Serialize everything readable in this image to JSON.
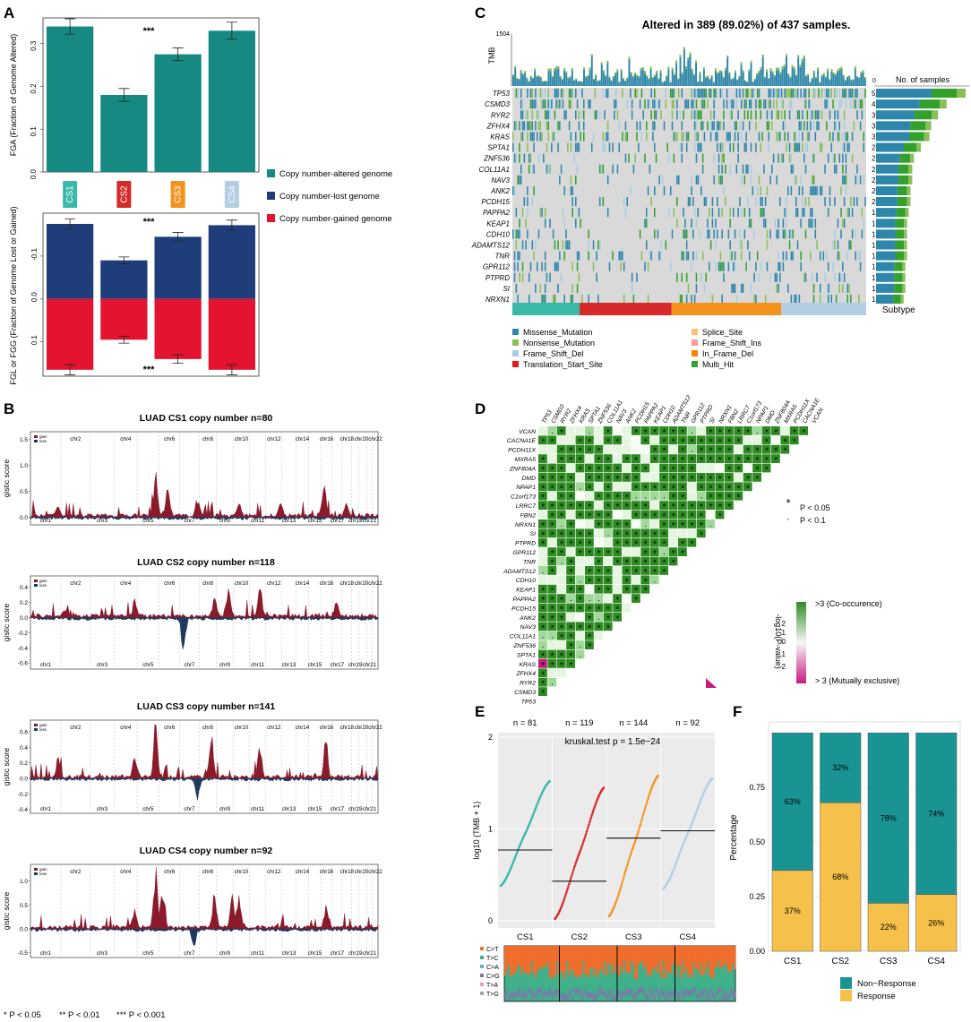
{
  "colors": {
    "teal": "#168a82",
    "navy": "#1f3d7a",
    "red": "#e4132f",
    "cs1": "#3bb9a8",
    "cs2": "#d42a2a",
    "cs3": "#f3931e",
    "cs4": "#b3cde3",
    "gain": "#8b1a2b",
    "loss": "#1f3a5f",
    "panel_bg": "#ebebeb",
    "mut_missense": "#2e86ab",
    "mut_nonsense": "#88c057",
    "mut_fsdel": "#a6cee3",
    "mut_tss": "#e31a1c",
    "mut_splice": "#fdbf6f",
    "mut_fsins": "#fb9a99",
    "mut_inframe": "#ff7f00",
    "mut_multi": "#33a02c",
    "coocc": "#2e8b22",
    "mutex": "#c51b7d",
    "resp": "#f6c14b",
    "nonresp": "#1a9493"
  },
  "panel_labels": {
    "a": "A",
    "b": "B",
    "c": "C",
    "d": "D",
    "e": "E",
    "f": "F"
  },
  "footnote": {
    "p05": "* P < 0.05",
    "p01": "** P < 0.01",
    "p001": "*** P < 0.001"
  },
  "chart_data": [
    {
      "id": "A-top",
      "type": "bar",
      "categories": [
        "CS1",
        "CS2",
        "CS3",
        "CS4"
      ],
      "values": [
        0.34,
        0.18,
        0.275,
        0.33
      ],
      "errors": [
        0.018,
        0.015,
        0.015,
        0.02
      ],
      "ylabel": "FGA (Fraction of Genome Altered)",
      "ylim": [
        0,
        0.36
      ],
      "yticks": [
        "0.0",
        "0.1",
        "0.2",
        "0.3"
      ],
      "yticks_v": [
        0,
        0.1,
        0.2,
        0.3
      ],
      "sig": "***",
      "legend": [
        "Copy number-altered genome",
        "Copy number-lost genome",
        "Copy number-gained genome"
      ]
    },
    {
      "id": "A-bottom",
      "type": "bar",
      "categories": [
        "CS1",
        "CS2",
        "CS3",
        "CS4"
      ],
      "series": [
        {
          "name": "lost",
          "values": [
            0.175,
            0.09,
            0.145,
            0.172
          ],
          "errors": [
            0.012,
            0.008,
            0.01,
            0.012
          ]
        },
        {
          "name": "gained",
          "values": [
            0.165,
            0.095,
            0.14,
            0.165
          ],
          "errors": [
            0.012,
            0.008,
            0.01,
            0.012
          ]
        }
      ],
      "ylabel": "FGL or FGG (Fraction of Genome Lost or Gained)",
      "ylim": [
        -0.2,
        0.18
      ],
      "yticks": [
        "-0.1",
        "0.0",
        "0.1"
      ],
      "yticks_v": [
        -0.1,
        0,
        0.1
      ],
      "sig_top": "***",
      "sig_bottom": "***"
    },
    {
      "id": "B",
      "type": "area",
      "ylabel": "gistic score",
      "legend": [
        "gain",
        "loss"
      ],
      "chr_top": [
        "chr2",
        "chr4",
        "chr6",
        "chr8",
        "chr10",
        "chr12",
        "chr14",
        "chr16",
        "chr18",
        "chr20chr22"
      ],
      "chr_bottom": [
        "chr1",
        "chr3",
        "chr5",
        "chr7",
        "chr9",
        "chr11",
        "chr13",
        "chr15",
        "chr17",
        "chr19",
        "chr21"
      ],
      "plots": [
        {
          "title": "LUAD CS1 copy number n=80",
          "yticks": [
            "1.5",
            "1.0",
            "0.5",
            "0.0"
          ],
          "yticks_v": [
            1.5,
            1.0,
            0.5,
            0.0
          ],
          "ylim": [
            -0.15,
            1.65
          ]
        },
        {
          "title": "LUAD CS2 copy number n=118",
          "yticks": [
            "0.4",
            "0.2",
            "0.0",
            "-0.2",
            "-0.4",
            "-0.6"
          ],
          "yticks_v": [
            0.4,
            0.2,
            0.0,
            -0.2,
            -0.4,
            -0.6
          ],
          "ylim": [
            -0.68,
            0.55
          ]
        },
        {
          "title": "LUAD CS3 copy number n=141",
          "yticks": [
            "0.6",
            "0.4",
            "0.2",
            "0.0",
            "-0.2",
            "-0.4"
          ],
          "yticks_v": [
            0.6,
            0.4,
            0.2,
            0.0,
            -0.2,
            -0.4
          ],
          "ylim": [
            -0.45,
            0.75
          ]
        },
        {
          "title": "LUAD CS4 copy number n=92",
          "yticks": [
            "1.0",
            "0.5",
            "0.0",
            "-0.5"
          ],
          "yticks_v": [
            1.0,
            0.5,
            0.0,
            -0.5
          ],
          "ylim": [
            -0.6,
            1.35
          ]
        }
      ]
    },
    {
      "id": "C",
      "type": "heatmap",
      "title": "Altered in 389 (89.02%) of 437 samples.",
      "tmb_label": "TMB",
      "tmb_max": "1504",
      "tmb_min": "0",
      "samples_label": "No. of samples",
      "subtype_label": "Subtype",
      "genes": [
        "TP53",
        "CSMD3",
        "RYR2",
        "ZFHX4",
        "KRAS",
        "SPTA1",
        "ZNF536",
        "COL11A1",
        "NAV3",
        "ANK2",
        "PCDH15",
        "PAPPA2",
        "KEAP1",
        "CDH10",
        "ADAMTS12",
        "TNR",
        "GPR112",
        "PTPRD",
        "SI",
        "NRXN1"
      ],
      "percents": [
        "52%",
        "41%",
        "36%",
        "32%",
        "31%",
        "26%",
        "22%",
        "21%",
        "21%",
        "20%",
        "20%",
        "19%",
        "18%",
        "18%",
        "18%",
        "18%",
        "17%",
        "17%",
        "17%",
        "16%"
      ],
      "percent_values": [
        52,
        41,
        36,
        32,
        31,
        26,
        22,
        21,
        21,
        20,
        20,
        19,
        18,
        18,
        18,
        18,
        17,
        17,
        17,
        16
      ],
      "legend": [
        "Missense_Mutation",
        "Nonsense_Mutation",
        "Frame_Shift_Del",
        "Translation_Start_Site",
        "Splice_Site",
        "Frame_Shift_Ins",
        "In_Frame_Del",
        "Multi_Hit"
      ]
    },
    {
      "id": "D",
      "type": "heatmap",
      "cols": [
        "TP53",
        "CSMD3",
        "RYR2",
        "ZFHX4",
        "KRAS",
        "SPTA1",
        "ZNF536",
        "COL11A1",
        "NAV3",
        "ANK2",
        "PCDH15",
        "PAPPA2",
        "KEAP1",
        "CDH10",
        "ADAMTS12",
        "TNR",
        "GPR112",
        "PTPRD",
        "SI",
        "NRXN1",
        "FBN2",
        "LRRC7",
        "C1orf173",
        "NPAP1",
        "DMD",
        "ZNF804A",
        "MXRA5",
        "PCDH11X",
        "CACNA1E",
        "VCAN"
      ],
      "rows": [
        "VCAN",
        "CACNA1E",
        "PCDH11X",
        "MXRA5",
        "ZNF804A",
        "DMD",
        "NPAP1",
        "C1orf173",
        "LRRC7",
        "FBN2",
        "NRXN1",
        "SI",
        "PTPRD",
        "GPR112",
        "TNR",
        "ADAMTS12",
        "CDH10",
        "KEAP1",
        "PAPPA2",
        "PCDH15",
        "ANK2",
        "NAV3",
        "COL11A1",
        "ZNF536",
        "SPTA1",
        "KRAS",
        "ZFHX4",
        "RYR2",
        "CSMD3",
        "TP53"
      ],
      "sig_legend": [
        "P < 0.05",
        "P < 0.1"
      ],
      "sig_symbols": [
        "*",
        "·"
      ],
      "colorbar_label": "-log10(P-value)",
      "colorbar_ticks": [
        "2",
        "1",
        "0",
        "1",
        "2"
      ],
      "colorbar_top": ">3 (Co-occurence)",
      "colorbar_bottom": "> 3 (Mutually exclusive)"
    },
    {
      "id": "E",
      "type": "scatter",
      "categories": [
        "CS1",
        "CS2",
        "CS3",
        "CS4"
      ],
      "n_labels": [
        "n = 81",
        "n = 119",
        "n = 144",
        "n = 92"
      ],
      "medians": [
        0.77,
        0.43,
        0.9,
        0.98
      ],
      "ranges": [
        [
          0.38,
          1.52
        ],
        [
          0.02,
          1.45
        ],
        [
          0.05,
          1.58
        ],
        [
          0.35,
          1.55
        ]
      ],
      "ylabel": "log10 (TMB + 1)",
      "yticks": [
        "0",
        "1",
        "2"
      ],
      "yticks_v": [
        0,
        1,
        2
      ],
      "ylim": [
        -0.08,
        2.05
      ],
      "annotation": "kruskal.test p = 1.5e−24",
      "spectrum_legend": [
        "C>T",
        "T>C",
        "C>A",
        "C>G",
        "T>A",
        "T>G"
      ]
    },
    {
      "id": "F",
      "type": "bar",
      "categories": [
        "CS1",
        "CS2",
        "CS3",
        "CS4"
      ],
      "series": [
        {
          "name": "Non−Response",
          "values": [
            0.63,
            0.32,
            0.78,
            0.74
          ]
        },
        {
          "name": "Response",
          "values": [
            0.37,
            0.68,
            0.22,
            0.26
          ]
        }
      ],
      "labels_nonresp": [
        "63%",
        "32%",
        "78%",
        "74%"
      ],
      "labels_resp": [
        "37%",
        "68%",
        "22%",
        "26%"
      ],
      "ylabel": "Percentage",
      "yticks": [
        "0.00",
        "0.25",
        "0.50",
        "0.75"
      ],
      "yticks_v": [
        0,
        0.25,
        0.5,
        0.75
      ],
      "ylim": [
        0,
        1.05
      ]
    }
  ]
}
